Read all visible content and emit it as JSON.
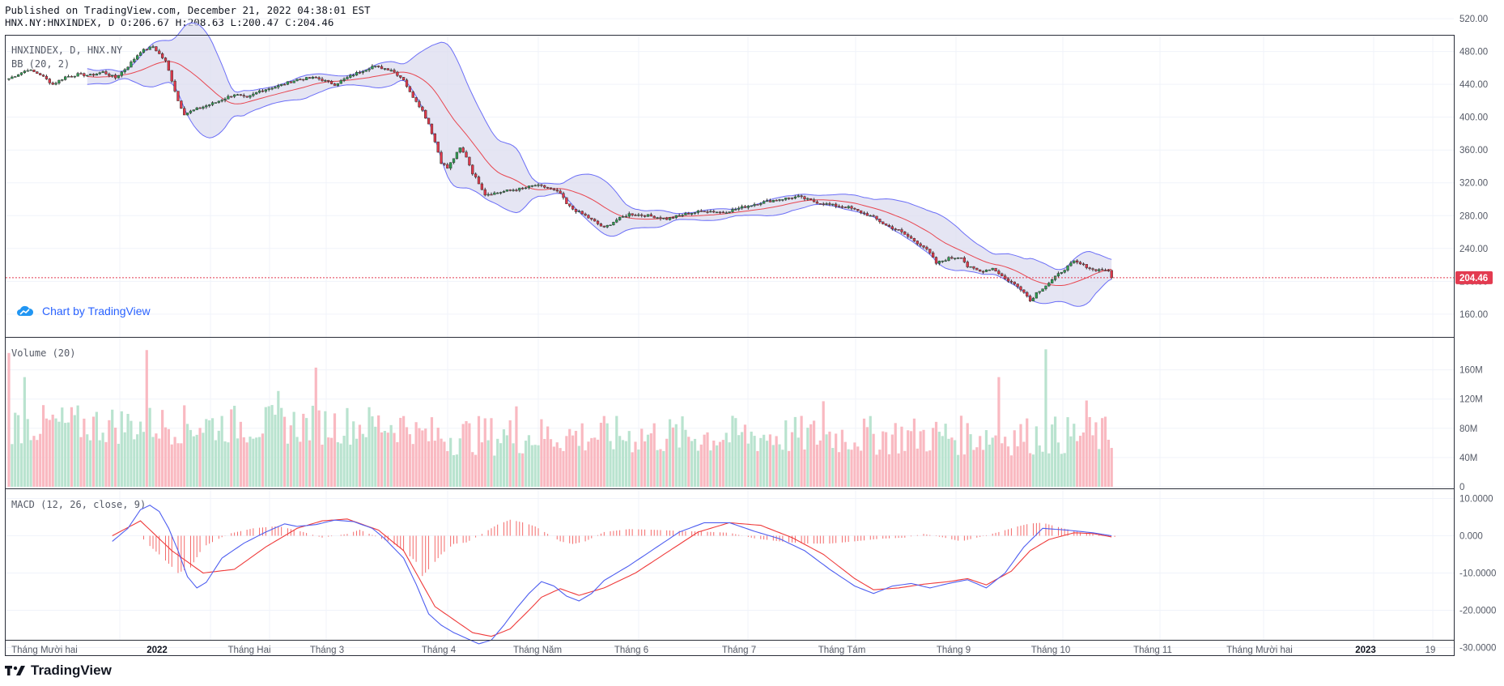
{
  "header": {
    "published": "Published on TradingView.com, December 21, 2022 04:38:01 EST",
    "symbol_line": "HNX.NY:HNXINDEX, D O:206.67 H:208.63 L:200.47 C:204.46"
  },
  "watermark": "Chart by TradingView",
  "brand": "TradingView",
  "colors": {
    "up": "#26a69a",
    "down": "#ef5350",
    "upBody": "#2e9e52",
    "downBody": "#e0384a",
    "volUp": "#b9e3cf",
    "volDown": "#f9b9c1",
    "band": "#6b6ef7",
    "basis": "#e8454f",
    "macd": "#4e5ef0",
    "signal": "#ef3b3b",
    "hist": "#f25a5a",
    "last": "#e33b50"
  },
  "chart_data": [
    {
      "type": "candlestick",
      "legend": [
        "HNXINDEX, D, HNX.NY",
        "BB (20, 2)"
      ],
      "ylim": [
        150,
        525
      ],
      "yticks": [
        160,
        200,
        240,
        280,
        320,
        360,
        400,
        440,
        480,
        520
      ],
      "ytick_labels": [
        "160.00",
        "200.00",
        "240.00",
        "280.00",
        "320.00",
        "360.00",
        "400.00",
        "440.00",
        "480.00",
        "520.00"
      ],
      "last_price": 204.46,
      "last_label": "204.46",
      "x_labels": [
        "Tháng Mười hai",
        "2022",
        "Tháng Hai",
        "Tháng 3",
        "Tháng 4",
        "Tháng Năm",
        "Tháng 6",
        "Tháng 7",
        "Tháng Tám",
        "Tháng 9",
        "Tháng 10",
        "Tháng 11",
        "Tháng Mười hai",
        "2023",
        "19"
      ],
      "close_path": [
        [
          0,
          447
        ],
        [
          6,
          458
        ],
        [
          10,
          452
        ],
        [
          14,
          440
        ],
        [
          18,
          449
        ],
        [
          22,
          452
        ],
        [
          26,
          451
        ],
        [
          30,
          455
        ],
        [
          34,
          448
        ],
        [
          38,
          462
        ],
        [
          42,
          480
        ],
        [
          46,
          486
        ],
        [
          50,
          468
        ],
        [
          52,
          445
        ],
        [
          54,
          420
        ],
        [
          56,
          404
        ],
        [
          60,
          410
        ],
        [
          66,
          418
        ],
        [
          72,
          428
        ],
        [
          76,
          423
        ],
        [
          80,
          432
        ],
        [
          86,
          438
        ],
        [
          92,
          446
        ],
        [
          98,
          448
        ],
        [
          104,
          440
        ],
        [
          110,
          452
        ],
        [
          116,
          462
        ],
        [
          122,
          458
        ],
        [
          126,
          446
        ],
        [
          128,
          430
        ],
        [
          130,
          420
        ],
        [
          132,
          408
        ],
        [
          134,
          392
        ],
        [
          136,
          370
        ],
        [
          138,
          345
        ],
        [
          140,
          338
        ],
        [
          144,
          362
        ],
        [
          146,
          352
        ],
        [
          148,
          332
        ],
        [
          150,
          320
        ],
        [
          152,
          306
        ],
        [
          156,
          308
        ],
        [
          160,
          311
        ],
        [
          164,
          313
        ],
        [
          168,
          317
        ],
        [
          172,
          314
        ],
        [
          176,
          307
        ],
        [
          178,
          294
        ],
        [
          180,
          288
        ],
        [
          184,
          280
        ],
        [
          188,
          270
        ],
        [
          190,
          265
        ],
        [
          194,
          275
        ],
        [
          198,
          282
        ],
        [
          204,
          280
        ],
        [
          210,
          276
        ],
        [
          216,
          282
        ],
        [
          222,
          286
        ],
        [
          228,
          284
        ],
        [
          234,
          290
        ],
        [
          240,
          296
        ],
        [
          246,
          300
        ],
        [
          252,
          303
        ],
        [
          258,
          296
        ],
        [
          264,
          292
        ],
        [
          268,
          290
        ],
        [
          272,
          284
        ],
        [
          276,
          278
        ],
        [
          280,
          268
        ],
        [
          284,
          262
        ],
        [
          288,
          252
        ],
        [
          292,
          242
        ],
        [
          294,
          234
        ],
        [
          296,
          222
        ],
        [
          300,
          228
        ],
        [
          304,
          230
        ],
        [
          306,
          218
        ],
        [
          310,
          212
        ],
        [
          314,
          216
        ],
        [
          316,
          210
        ],
        [
          318,
          203
        ],
        [
          320,
          199
        ],
        [
          324,
          188
        ],
        [
          326,
          176
        ],
        [
          328,
          186
        ],
        [
          332,
          198
        ],
        [
          336,
          212
        ],
        [
          340,
          224
        ],
        [
          344,
          218
        ],
        [
          346,
          214
        ],
        [
          350,
          214
        ],
        [
          352,
          210
        ]
      ],
      "series": [
        "OHLC candles",
        "BB basis",
        "BB upper",
        "BB lower"
      ]
    },
    {
      "type": "bar",
      "legend": "Volume (20)",
      "ylim": [
        0,
        195
      ],
      "yticks": [
        0,
        40,
        80,
        120,
        160
      ],
      "ytick_labels": [
        "0",
        "40M",
        "80M",
        "120M",
        "160M"
      ],
      "spikes": [
        [
          0,
          183
        ],
        [
          5,
          150
        ],
        [
          44,
          187
        ],
        [
          86,
          131
        ],
        [
          98,
          163
        ],
        [
          162,
          110
        ],
        [
          260,
          117
        ],
        [
          316,
          150
        ],
        [
          331,
          188
        ],
        [
          344,
          118
        ]
      ]
    },
    {
      "type": "line",
      "legend": "MACD (12, 26, close, 9)",
      "ylim": [
        -31,
        11
      ],
      "yticks": [
        10,
        0,
        -10,
        -20,
        -30
      ],
      "ytick_labels": [
        "10.0000",
        "0.000",
        "-10.0000",
        "-20.0000",
        "-30.0000"
      ],
      "macd_path": [
        [
          33,
          -1.5
        ],
        [
          38,
          2
        ],
        [
          42,
          7
        ],
        [
          45,
          8.2
        ],
        [
          48,
          6.5
        ],
        [
          51,
          2
        ],
        [
          54,
          -4
        ],
        [
          57,
          -11
        ],
        [
          60,
          -14
        ],
        [
          63,
          -12.5
        ],
        [
          68,
          -6
        ],
        [
          75,
          -2
        ],
        [
          82,
          1
        ],
        [
          88,
          3.2
        ],
        [
          92,
          2.5
        ],
        [
          98,
          3
        ],
        [
          104,
          4.2
        ],
        [
          110,
          3.8
        ],
        [
          116,
          2
        ],
        [
          120,
          -0.8
        ],
        [
          126,
          -6
        ],
        [
          130,
          -13
        ],
        [
          134,
          -21
        ],
        [
          138,
          -24
        ],
        [
          142,
          -26
        ],
        [
          146,
          -27.5
        ],
        [
          150,
          -29
        ],
        [
          154,
          -28
        ],
        [
          158,
          -24
        ],
        [
          162,
          -19.5
        ],
        [
          166,
          -15.5
        ],
        [
          170,
          -12.3
        ],
        [
          174,
          -13.5
        ],
        [
          178,
          -16.2
        ],
        [
          182,
          -17.5
        ],
        [
          186,
          -15.5
        ],
        [
          190,
          -12
        ],
        [
          198,
          -8
        ],
        [
          206,
          -3.5
        ],
        [
          214,
          1
        ],
        [
          222,
          3.5
        ],
        [
          230,
          3.5
        ],
        [
          238,
          1.2
        ],
        [
          246,
          -0.8
        ],
        [
          254,
          -4
        ],
        [
          262,
          -9
        ],
        [
          270,
          -13.5
        ],
        [
          276,
          -15.5
        ],
        [
          282,
          -13.5
        ],
        [
          288,
          -12.8
        ],
        [
          294,
          -14
        ],
        [
          300,
          -12.8
        ],
        [
          306,
          -11.8
        ],
        [
          312,
          -14
        ],
        [
          318,
          -10
        ],
        [
          324,
          -3
        ],
        [
          330,
          2
        ],
        [
          338,
          1.5
        ],
        [
          346,
          0.8
        ],
        [
          352,
          0
        ]
      ],
      "signal_path": [
        [
          33,
          0
        ],
        [
          42,
          4
        ],
        [
          52,
          -4
        ],
        [
          62,
          -10
        ],
        [
          72,
          -9
        ],
        [
          82,
          -3
        ],
        [
          92,
          2
        ],
        [
          100,
          4
        ],
        [
          108,
          4.5
        ],
        [
          118,
          1.5
        ],
        [
          126,
          -4
        ],
        [
          132,
          -13
        ],
        [
          136,
          -19
        ],
        [
          142,
          -22.5
        ],
        [
          148,
          -26
        ],
        [
          154,
          -27
        ],
        [
          160,
          -25
        ],
        [
          166,
          -20
        ],
        [
          170,
          -16.5
        ],
        [
          176,
          -14.2
        ],
        [
          182,
          -16
        ],
        [
          190,
          -14
        ],
        [
          200,
          -10
        ],
        [
          210,
          -4.5
        ],
        [
          220,
          1
        ],
        [
          230,
          3.5
        ],
        [
          240,
          2.8
        ],
        [
          250,
          -0.5
        ],
        [
          260,
          -5
        ],
        [
          270,
          -11.5
        ],
        [
          276,
          -14.5
        ],
        [
          284,
          -14
        ],
        [
          292,
          -13
        ],
        [
          300,
          -12.3
        ],
        [
          306,
          -11.5
        ],
        [
          312,
          -13.2
        ],
        [
          320,
          -9.5
        ],
        [
          326,
          -4
        ],
        [
          332,
          -1
        ],
        [
          340,
          0.8
        ],
        [
          346,
          0.6
        ],
        [
          352,
          -0.3
        ]
      ],
      "hist_path": [
        [
          33,
          6
        ],
        [
          38,
          4
        ],
        [
          44,
          -2
        ],
        [
          48,
          -5
        ],
        [
          54,
          -10
        ],
        [
          58,
          -8.5
        ],
        [
          62,
          -3
        ],
        [
          70,
          0.5
        ],
        [
          78,
          2
        ],
        [
          86,
          2.6
        ],
        [
          94,
          1
        ],
        [
          100,
          -0.5
        ],
        [
          108,
          0.5
        ],
        [
          112,
          1.6
        ],
        [
          118,
          -0.5
        ],
        [
          122,
          -1.8
        ],
        [
          126,
          -4
        ],
        [
          130,
          -7
        ],
        [
          132,
          -10.8
        ],
        [
          134,
          -9
        ],
        [
          138,
          -5
        ],
        [
          142,
          -2.2
        ],
        [
          146,
          -1.8
        ],
        [
          150,
          0
        ],
        [
          156,
          3
        ],
        [
          160,
          4.3
        ],
        [
          164,
          3.6
        ],
        [
          168,
          2.5
        ],
        [
          172,
          0.5
        ],
        [
          176,
          -1.5
        ],
        [
          180,
          -2.2
        ],
        [
          184,
          -1.5
        ],
        [
          190,
          1
        ],
        [
          198,
          1.8
        ],
        [
          206,
          1.6
        ],
        [
          214,
          1.3
        ],
        [
          222,
          1.1
        ],
        [
          230,
          0.8
        ],
        [
          238,
          -0.7
        ],
        [
          246,
          -1.5
        ],
        [
          254,
          -2.1
        ],
        [
          262,
          -2.1
        ],
        [
          270,
          -1.5
        ],
        [
          278,
          -0.8
        ],
        [
          286,
          -0.5
        ],
        [
          292,
          0.5
        ],
        [
          298,
          -0.4
        ],
        [
          304,
          -1.5
        ],
        [
          310,
          -0.3
        ],
        [
          316,
          1
        ],
        [
          322,
          2.5
        ],
        [
          326,
          3.3
        ],
        [
          330,
          3.5
        ],
        [
          336,
          2.1
        ],
        [
          342,
          0.9
        ],
        [
          348,
          0.4
        ],
        [
          352,
          -0.3
        ]
      ]
    }
  ]
}
